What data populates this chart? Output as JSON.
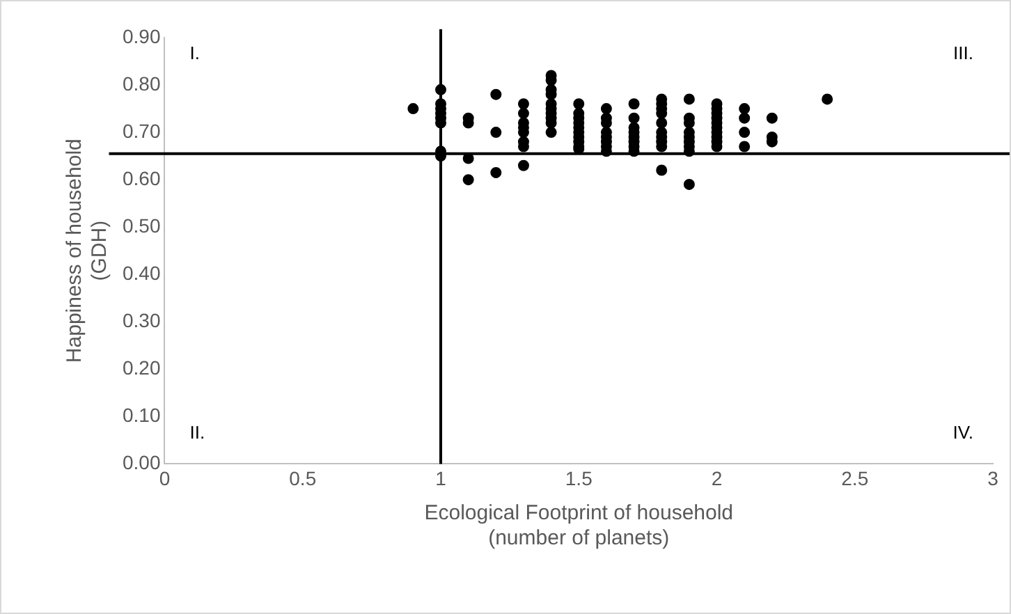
{
  "chart_data": {
    "type": "scatter",
    "xlabel": "Ecological Footprint of household\n(number of planets)",
    "ylabel": "Happiness of household\n(GDH)",
    "annotations": [
      "I.",
      "II.",
      "III.",
      "IV."
    ],
    "series": [
      {
        "color": "#000000",
        "x": [
          0.9,
          1,
          1,
          1,
          1,
          1,
          1,
          1,
          1,
          1.1,
          1.1,
          1.1,
          1.1,
          1.2,
          1.2,
          1.2,
          1.3,
          1.3,
          1.3,
          1.3,
          1.3,
          1.3,
          1.3,
          1.3,
          1.4,
          1.4,
          1.4,
          1.4,
          1.4,
          1.4,
          1.4,
          1.4,
          1.4,
          1.4,
          1.5,
          1.5,
          1.5,
          1.5,
          1.5,
          1.5,
          1.5,
          1.5,
          1.5,
          1.5,
          1.6,
          1.6,
          1.6,
          1.6,
          1.6,
          1.6,
          1.6,
          1.6,
          1.7,
          1.7,
          1.7,
          1.7,
          1.7,
          1.7,
          1.7,
          1.7,
          1.8,
          1.8,
          1.8,
          1.8,
          1.8,
          1.8,
          1.8,
          1.8,
          1.8,
          1.8,
          1.9,
          1.9,
          1.9,
          1.9,
          1.9,
          1.9,
          1.9,
          1.9,
          1.9,
          2,
          2,
          2,
          2,
          2,
          2,
          2,
          2,
          2,
          2,
          2.1,
          2.1,
          2.1,
          2.1,
          2.2,
          2.2,
          2.2,
          2.4
        ],
        "values": [
          0.75,
          0.79,
          0.76,
          0.75,
          0.74,
          0.73,
          0.72,
          0.66,
          0.65,
          0.73,
          0.72,
          0.645,
          0.6,
          0.78,
          0.7,
          0.615,
          0.76,
          0.74,
          0.72,
          0.71,
          0.7,
          0.68,
          0.67,
          0.63,
          0.82,
          0.81,
          0.79,
          0.78,
          0.76,
          0.75,
          0.74,
          0.73,
          0.72,
          0.7,
          0.76,
          0.74,
          0.73,
          0.72,
          0.71,
          0.7,
          0.69,
          0.68,
          0.67,
          0.665,
          0.75,
          0.73,
          0.72,
          0.7,
          0.69,
          0.68,
          0.67,
          0.66,
          0.76,
          0.73,
          0.71,
          0.7,
          0.69,
          0.68,
          0.67,
          0.66,
          0.77,
          0.76,
          0.75,
          0.74,
          0.72,
          0.7,
          0.69,
          0.68,
          0.67,
          0.62,
          0.77,
          0.73,
          0.72,
          0.7,
          0.69,
          0.68,
          0.67,
          0.66,
          0.59,
          0.76,
          0.75,
          0.74,
          0.73,
          0.72,
          0.71,
          0.7,
          0.69,
          0.68,
          0.67,
          0.75,
          0.73,
          0.7,
          0.67,
          0.73,
          0.69,
          0.68,
          0.77
        ]
      }
    ],
    "marker": "circle",
    "grid": false,
    "legend": false,
    "xlim": [
      0,
      3
    ],
    "xticks": [
      0,
      0.5,
      1,
      1.5,
      2,
      2.5,
      3
    ],
    "ylim": [
      0,
      0.9
    ],
    "yticks": [
      {
        "value": 0,
        "label": "0.00"
      },
      {
        "value": 0.1,
        "label": "0.10"
      },
      {
        "value": 0.2,
        "label": "0.20"
      },
      {
        "value": 0.3,
        "label": "0.30"
      },
      {
        "value": 0.4,
        "label": "0.40"
      },
      {
        "value": 0.5,
        "label": "0.50"
      },
      {
        "value": 0.6,
        "label": "0.60"
      },
      {
        "value": 0.7,
        "label": "0.70"
      },
      {
        "value": 0.8,
        "label": "0.80"
      },
      {
        "value": 0.9,
        "label": "0.90"
      }
    ],
    "ref_lines": [
      {
        "axis": "x",
        "value": 1,
        "color": "#000000"
      },
      {
        "axis": "y",
        "value": 0.655,
        "color": "#000000"
      }
    ]
  }
}
